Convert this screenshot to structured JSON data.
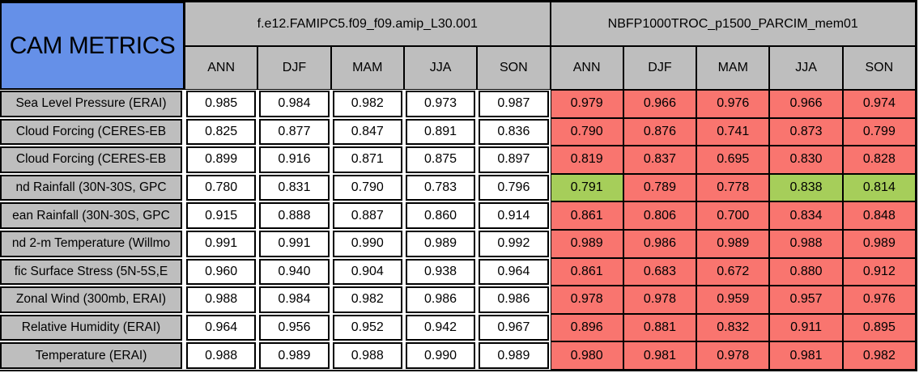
{
  "colors": {
    "title_bg": "#6590E8",
    "header_bg": "#BEBEBE",
    "red_cell": "#F9756F",
    "green_cell": "#A6CE5A",
    "model1_cell_bg": "#FFFFFF",
    "border": "#000000"
  },
  "chart_data": {
    "type": "table",
    "title": "CAM METRICS",
    "models": [
      "f.e12.FAMIPC5.f09_f09.amip_L30.001",
      "NBFP1000TROC_p1500_PARCIM_mem01"
    ],
    "seasons": [
      "ANN",
      "DJF",
      "MAM",
      "JJA",
      "SON"
    ],
    "value_format": "0.000",
    "rows": [
      {
        "label": "Sea Level Pressure (ERAI)",
        "model1_values": [
          0.985,
          0.984,
          0.982,
          0.973,
          0.987
        ],
        "model2_values": [
          0.979,
          0.966,
          0.976,
          0.966,
          0.974
        ],
        "model2_cell_colors": [
          "red",
          "red",
          "red",
          "red",
          "red"
        ]
      },
      {
        "label": "Cloud Forcing (CERES-EB",
        "model1_values": [
          0.825,
          0.877,
          0.847,
          0.891,
          0.836
        ],
        "model2_values": [
          0.79,
          0.876,
          0.741,
          0.873,
          0.799
        ],
        "model2_cell_colors": [
          "red",
          "red",
          "red",
          "red",
          "red"
        ]
      },
      {
        "label": "Cloud Forcing (CERES-EB",
        "model1_values": [
          0.899,
          0.916,
          0.871,
          0.875,
          0.897
        ],
        "model2_values": [
          0.819,
          0.837,
          0.695,
          0.83,
          0.828
        ],
        "model2_cell_colors": [
          "red",
          "red",
          "red",
          "red",
          "red"
        ]
      },
      {
        "label": "nd Rainfall (30N-30S, GPC",
        "model1_values": [
          0.78,
          0.831,
          0.79,
          0.783,
          0.796
        ],
        "model2_values": [
          0.791,
          0.789,
          0.778,
          0.838,
          0.814
        ],
        "model2_cell_colors": [
          "green",
          "red",
          "red",
          "green",
          "green"
        ]
      },
      {
        "label": "ean Rainfall (30N-30S, GPC",
        "model1_values": [
          0.915,
          0.888,
          0.887,
          0.86,
          0.914
        ],
        "model2_values": [
          0.861,
          0.806,
          0.7,
          0.834,
          0.848
        ],
        "model2_cell_colors": [
          "red",
          "red",
          "red",
          "red",
          "red"
        ]
      },
      {
        "label": "nd 2-m Temperature (Willmo",
        "model1_values": [
          0.991,
          0.991,
          0.99,
          0.989,
          0.992
        ],
        "model2_values": [
          0.989,
          0.986,
          0.989,
          0.988,
          0.989
        ],
        "model2_cell_colors": [
          "red",
          "red",
          "red",
          "red",
          "red"
        ]
      },
      {
        "label": "fic Surface Stress (5N-5S,E",
        "model1_values": [
          0.96,
          0.94,
          0.904,
          0.938,
          0.964
        ],
        "model2_values": [
          0.861,
          0.683,
          0.672,
          0.88,
          0.912
        ],
        "model2_cell_colors": [
          "red",
          "red",
          "red",
          "red",
          "red"
        ]
      },
      {
        "label": "Zonal Wind (300mb, ERAI)",
        "model1_values": [
          0.988,
          0.984,
          0.982,
          0.986,
          0.986
        ],
        "model2_values": [
          0.978,
          0.978,
          0.959,
          0.957,
          0.976
        ],
        "model2_cell_colors": [
          "red",
          "red",
          "red",
          "red",
          "red"
        ]
      },
      {
        "label": "Relative Humidity (ERAI)",
        "model1_values": [
          0.964,
          0.956,
          0.952,
          0.942,
          0.967
        ],
        "model2_values": [
          0.896,
          0.881,
          0.832,
          0.911,
          0.895
        ],
        "model2_cell_colors": [
          "red",
          "red",
          "red",
          "red",
          "red"
        ]
      },
      {
        "label": "Temperature (ERAI)",
        "model1_values": [
          0.988,
          0.989,
          0.988,
          0.99,
          0.989
        ],
        "model2_values": [
          0.98,
          0.981,
          0.978,
          0.981,
          0.982
        ],
        "model2_cell_colors": [
          "red",
          "red",
          "red",
          "red",
          "red"
        ]
      }
    ]
  }
}
